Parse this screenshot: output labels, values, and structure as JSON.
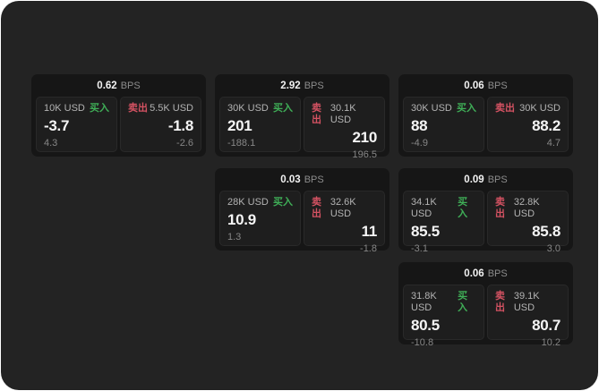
{
  "labels": {
    "bps": "BPS",
    "buy": "买入",
    "sell": "卖出"
  },
  "colors": {
    "window-bg": "#232323",
    "card-bg": "#161616",
    "panel-bg": "#1e1e1e",
    "green": "#3fae57",
    "red": "#d45262"
  },
  "cards": [
    {
      "bps": "0.62",
      "buy": {
        "amount": "10K USD",
        "price": "-3.7",
        "delta": "4.3"
      },
      "sell": {
        "amount": "5.5K USD",
        "price": "-1.8",
        "delta": "-2.6"
      }
    },
    {
      "bps": "2.92",
      "buy": {
        "amount": "30K USD",
        "price": "201",
        "delta": "-188.1"
      },
      "sell": {
        "amount": "30.1K USD",
        "price": "210",
        "delta": "196.5"
      }
    },
    {
      "bps": "0.06",
      "buy": {
        "amount": "30K USD",
        "price": "88",
        "delta": "-4.9"
      },
      "sell": {
        "amount": "30K USD",
        "price": "88.2",
        "delta": "4.7"
      }
    },
    {
      "bps": "0.03",
      "buy": {
        "amount": "28K USD",
        "price": "10.9",
        "delta": "1.3"
      },
      "sell": {
        "amount": "32.6K USD",
        "price": "11",
        "delta": "-1.8"
      }
    },
    {
      "bps": "0.09",
      "buy": {
        "amount": "34.1K USD",
        "price": "85.5",
        "delta": "-3.1"
      },
      "sell": {
        "amount": "32.8K USD",
        "price": "85.8",
        "delta": "3.0"
      }
    },
    {
      "bps": "0.06",
      "buy": {
        "amount": "31.8K USD",
        "price": "80.5",
        "delta": "-10.8"
      },
      "sell": {
        "amount": "39.1K USD",
        "price": "80.7",
        "delta": "10.2"
      }
    }
  ]
}
